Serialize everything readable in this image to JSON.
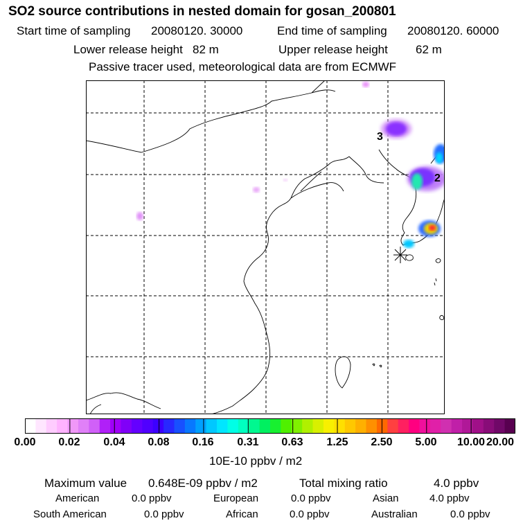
{
  "title": "SO2 source contributions in nested domain for gosan_200801",
  "sampling": {
    "start_label": "Start time of sampling",
    "start_value": "20080120. 30000",
    "end_label": "End time of sampling",
    "end_value": "20080120. 60000"
  },
  "release": {
    "lower_label": "Lower release height",
    "lower_value": "82 m",
    "upper_label": "Upper release height",
    "upper_value": "62 m"
  },
  "note": "Passive tracer used, meteorological data are from ECMWF",
  "map": {
    "source_labels": [
      "3",
      "2"
    ],
    "colors": {
      "coast": "#000000",
      "grid": "#000000"
    }
  },
  "colorbar": {
    "colors": [
      "#ffffff",
      "#ffe6ff",
      "#ffccff",
      "#ffb3ff",
      "#f098f8",
      "#e080f8",
      "#d060f8",
      "#b020f8",
      "#a000f8",
      "#8000f8",
      "#6400ff",
      "#5000ff",
      "#3c00ff",
      "#2828ff",
      "#1850ff",
      "#0878ff",
      "#00a0ff",
      "#00c8ff",
      "#00e6ff",
      "#00ffe6",
      "#00ffc0",
      "#00f890",
      "#00f060",
      "#18f030",
      "#50f000",
      "#80f000",
      "#b0f000",
      "#d8f000",
      "#f8f000",
      "#ffe000",
      "#ffc800",
      "#ffb000",
      "#ff9000",
      "#ff6800",
      "#ff4040",
      "#ff2060",
      "#ff0080",
      "#f0109c",
      "#e020a8",
      "#d030b0",
      "#c020a8",
      "#b01898",
      "#a01088",
      "#880c78",
      "#700868",
      "#580050"
    ],
    "tick_labels": [
      "0.00",
      "0.02",
      "0.04",
      "0.08",
      "0.16",
      "0.31",
      "0.63",
      "1.25",
      "2.50",
      "5.00",
      "10.00",
      "20.00"
    ],
    "unit": "10E-10 ppbv / m2"
  },
  "summary": {
    "max_label": "Maximum value",
    "max_value": "0.648E-09 ppbv / m2",
    "total_label": "Total mixing ratio",
    "total_value": "4.0 ppbv",
    "regions": [
      {
        "name": "American",
        "value": "0.0 ppbv"
      },
      {
        "name": "European",
        "value": "0.0 ppbv"
      },
      {
        "name": "Asian",
        "value": "4.0 ppbv"
      },
      {
        "name": "South American",
        "value": "0.0 ppbv"
      },
      {
        "name": "African",
        "value": "0.0 ppbv"
      },
      {
        "name": "Australian",
        "value": "0.0 ppbv"
      }
    ]
  }
}
